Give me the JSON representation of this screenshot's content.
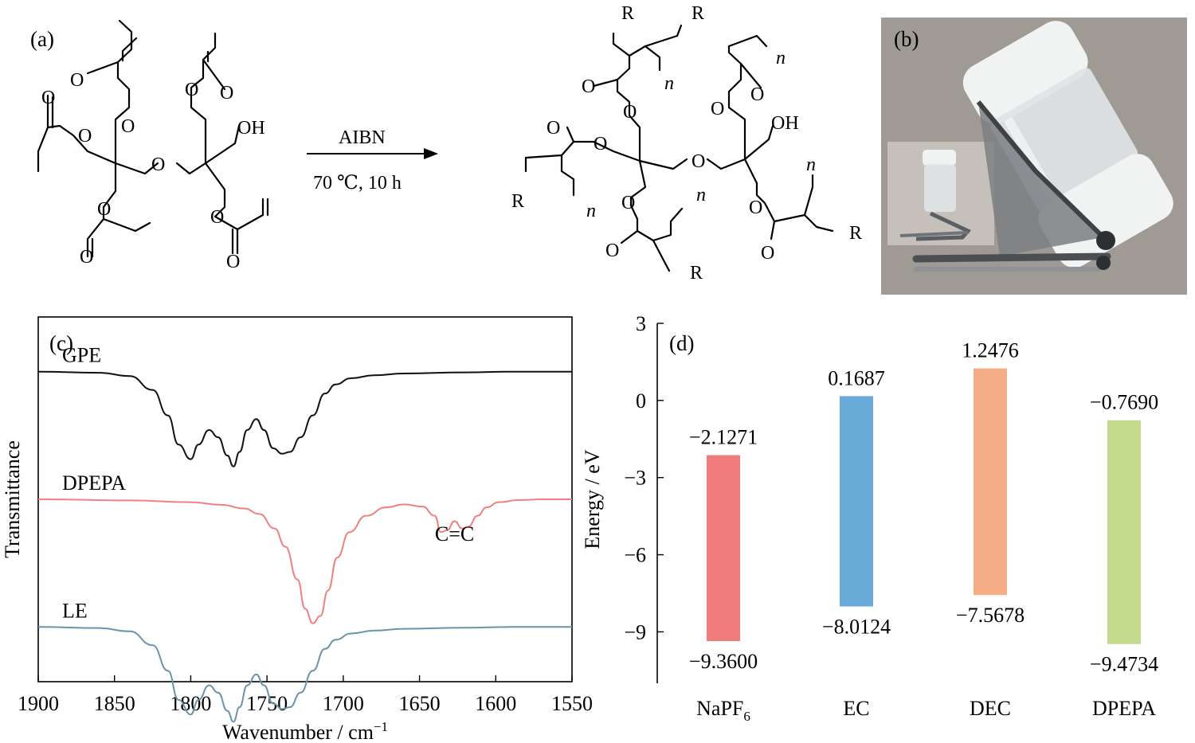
{
  "panels": {
    "a": "(a)",
    "b": "(b)",
    "c": "(c)",
    "d": "(d)"
  },
  "scheme": {
    "reagent": "AIBN",
    "conditions": "70 ℃, 10  h",
    "atoms": {
      "O": "O",
      "OH": "OH",
      "R": "R",
      "n": "n"
    }
  },
  "photo": {
    "background_color": "#a09a94",
    "vial_color": "#dfe4e6",
    "cap_color": "#f1f2f2",
    "clip_color": "#5b5f62"
  },
  "chart_data": [
    {
      "panel": "c",
      "type": "line",
      "xlabel": "Wavenumber / cm",
      "xlabel_sup": "−1",
      "ylabel": "Transmittance",
      "xlim": [
        1900,
        1550
      ],
      "xticks": [
        "1900",
        "1850",
        "1800",
        "1750",
        "1700",
        "1650",
        "1600",
        "1550"
      ],
      "annotations": [
        {
          "text": "C=C",
          "x": 1627
        }
      ],
      "series": [
        {
          "name": "GPE",
          "color": "#111111",
          "offset": 0.85,
          "x": [
            1900,
            1860,
            1840,
            1825,
            1815,
            1808,
            1800,
            1795,
            1788,
            1782,
            1776,
            1772,
            1768,
            1763,
            1757,
            1752,
            1746,
            1740,
            1735,
            1728,
            1720,
            1712,
            1705,
            1695,
            1680,
            1660,
            1620,
            1590,
            1550
          ],
          "y": [
            0,
            -0.003,
            -0.012,
            -0.05,
            -0.12,
            -0.2,
            -0.24,
            -0.2,
            -0.16,
            -0.18,
            -0.23,
            -0.26,
            -0.22,
            -0.16,
            -0.13,
            -0.16,
            -0.21,
            -0.225,
            -0.22,
            -0.18,
            -0.12,
            -0.06,
            -0.035,
            -0.018,
            -0.01,
            -0.005,
            -0.002,
            0,
            0
          ]
        },
        {
          "name": "DPEPA",
          "color": "#f08080",
          "offset": 0.5,
          "x": [
            1900,
            1840,
            1800,
            1780,
            1765,
            1755,
            1745,
            1738,
            1730,
            1725,
            1720,
            1715,
            1710,
            1704,
            1696,
            1685,
            1672,
            1660,
            1648,
            1640,
            1636,
            1632,
            1627,
            1622,
            1618,
            1612,
            1606,
            1598,
            1585,
            1570,
            1550
          ],
          "y": [
            0,
            -0.003,
            -0.008,
            -0.015,
            -0.025,
            -0.04,
            -0.08,
            -0.13,
            -0.22,
            -0.3,
            -0.34,
            -0.32,
            -0.25,
            -0.16,
            -0.09,
            -0.045,
            -0.022,
            -0.014,
            -0.02,
            -0.045,
            -0.09,
            -0.085,
            -0.06,
            -0.08,
            -0.075,
            -0.045,
            -0.022,
            -0.008,
            -0.002,
            0,
            0
          ]
        },
        {
          "name": "LE",
          "color": "#6a94ab",
          "offset": 0.15,
          "x": [
            1900,
            1860,
            1840,
            1825,
            1815,
            1808,
            1800,
            1795,
            1788,
            1782,
            1776,
            1772,
            1768,
            1763,
            1757,
            1752,
            1746,
            1740,
            1735,
            1728,
            1720,
            1712,
            1705,
            1695,
            1680,
            1660,
            1620,
            1590,
            1550
          ],
          "y": [
            0,
            -0.003,
            -0.012,
            -0.05,
            -0.12,
            -0.2,
            -0.24,
            -0.2,
            -0.16,
            -0.18,
            -0.23,
            -0.26,
            -0.22,
            -0.16,
            -0.13,
            -0.16,
            -0.21,
            -0.225,
            -0.22,
            -0.18,
            -0.12,
            -0.06,
            -0.035,
            -0.018,
            -0.01,
            -0.005,
            -0.002,
            0,
            0
          ]
        }
      ]
    },
    {
      "panel": "d",
      "type": "bar",
      "ylabel": "Energy / eV",
      "ylim": [
        -11,
        3
      ],
      "yticks": [
        3,
        0,
        -3,
        -6,
        -9
      ],
      "ytick_labels": [
        "3",
        "0",
        "−3",
        "−6",
        "−9"
      ],
      "categories": [
        "NaPF",
        "EC",
        "DEC",
        "DPEPA"
      ],
      "category_subscripts": [
        "6",
        "",
        "",
        ""
      ],
      "top_values": [
        -2.1271,
        0.1687,
        1.2476,
        -0.769
      ],
      "bottom_values": [
        -9.36,
        -8.0124,
        -7.5678,
        -9.4734
      ],
      "top_labels": [
        "−2.1271",
        "0.1687",
        "1.2476",
        "−0.7690"
      ],
      "bottom_labels": [
        "−9.3600",
        "−8.0124",
        "−7.5678",
        "−9.4734"
      ],
      "colors": [
        "#f07c7c",
        "#6aaad8",
        "#f4ad84",
        "#c3da8c"
      ]
    }
  ]
}
